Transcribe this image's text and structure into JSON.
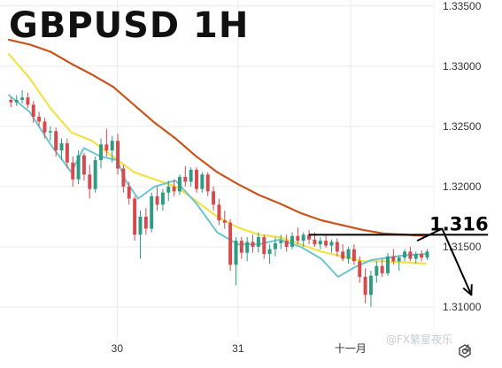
{
  "chart_data": {
    "type": "candlestick",
    "title": "GBPUSD 1H",
    "ylim": [
      1.3075,
      1.3355
    ],
    "yticks": [
      {
        "v": 1.335,
        "label": "1.33500"
      },
      {
        "v": 1.33,
        "label": "1.33000"
      },
      {
        "v": 1.325,
        "label": "1.32500"
      },
      {
        "v": 1.32,
        "label": "1.32000"
      },
      {
        "v": 1.315,
        "label": "1.31500"
      },
      {
        "v": 1.31,
        "label": "1.31000"
      }
    ],
    "xlim": [
      0,
      102
    ],
    "xticks": [
      {
        "x": 26,
        "label": "30"
      },
      {
        "x": 55,
        "label": "31"
      },
      {
        "x": 82,
        "label": "十一月"
      },
      {
        "x": 110,
        "label": "4"
      }
    ],
    "grid": true,
    "candles": [
      [
        1.3272,
        1.3274,
        1.3266,
        1.327
      ],
      [
        1.327,
        1.3276,
        1.3267,
        1.3272
      ],
      [
        1.3272,
        1.328,
        1.3269,
        1.3274
      ],
      [
        1.3274,
        1.3278,
        1.3265,
        1.3268
      ],
      [
        1.3268,
        1.3271,
        1.3253,
        1.3258
      ],
      [
        1.3258,
        1.3262,
        1.325,
        1.3254
      ],
      [
        1.3254,
        1.3257,
        1.324,
        1.3245
      ],
      [
        1.3245,
        1.325,
        1.3238,
        1.3246
      ],
      [
        1.3246,
        1.3249,
        1.3225,
        1.323
      ],
      [
        1.323,
        1.324,
        1.3222,
        1.3236
      ],
      [
        1.3236,
        1.324,
        1.3215,
        1.322
      ],
      [
        1.322,
        1.3225,
        1.32,
        1.3206
      ],
      [
        1.3206,
        1.323,
        1.3202,
        1.3226
      ],
      [
        1.3226,
        1.3228,
        1.3205,
        1.321
      ],
      [
        1.321,
        1.3218,
        1.319,
        1.3198
      ],
      [
        1.3198,
        1.3225,
        1.3195,
        1.3222
      ],
      [
        1.3222,
        1.324,
        1.3215,
        1.3235
      ],
      [
        1.3235,
        1.3248,
        1.3225,
        1.323
      ],
      [
        1.323,
        1.3242,
        1.322,
        1.3238
      ],
      [
        1.3238,
        1.3244,
        1.321,
        1.3215
      ],
      [
        1.3215,
        1.3218,
        1.3195,
        1.32
      ],
      [
        1.32,
        1.3204,
        1.3185,
        1.319
      ],
      [
        1.319,
        1.3192,
        1.3155,
        1.316
      ],
      [
        1.316,
        1.318,
        1.314,
        1.3175
      ],
      [
        1.3175,
        1.3182,
        1.316,
        1.3165
      ],
      [
        1.3165,
        1.3195,
        1.3162,
        1.3192
      ],
      [
        1.3192,
        1.32,
        1.318,
        1.3185
      ],
      [
        1.3185,
        1.3198,
        1.318,
        1.3195
      ],
      [
        1.3195,
        1.3205,
        1.3188,
        1.32
      ],
      [
        1.32,
        1.3206,
        1.3192,
        1.3196
      ],
      [
        1.3196,
        1.321,
        1.3193,
        1.3208
      ],
      [
        1.3208,
        1.3217,
        1.32,
        1.3204
      ],
      [
        1.3204,
        1.3216,
        1.32,
        1.3214
      ],
      [
        1.3214,
        1.3216,
        1.3195,
        1.3198
      ],
      [
        1.3198,
        1.3212,
        1.3195,
        1.321
      ],
      [
        1.321,
        1.3212,
        1.3192,
        1.3196
      ],
      [
        1.3196,
        1.32,
        1.318,
        1.3185
      ],
      [
        1.3185,
        1.319,
        1.3168,
        1.3172
      ],
      [
        1.3172,
        1.318,
        1.3165,
        1.317
      ],
      [
        1.317,
        1.3173,
        1.313,
        1.3135
      ],
      [
        1.3135,
        1.3158,
        1.3118,
        1.3155
      ],
      [
        1.3155,
        1.3158,
        1.314,
        1.3145
      ],
      [
        1.3145,
        1.3158,
        1.3138,
        1.3154
      ],
      [
        1.3154,
        1.316,
        1.3145,
        1.315
      ],
      [
        1.315,
        1.3162,
        1.3145,
        1.3158
      ],
      [
        1.3158,
        1.316,
        1.314,
        1.3144
      ],
      [
        1.3144,
        1.3152,
        1.3136,
        1.3148
      ],
      [
        1.3148,
        1.3158,
        1.3142,
        1.3153
      ],
      [
        1.3153,
        1.316,
        1.3148,
        1.3155
      ],
      [
        1.3155,
        1.316,
        1.3146,
        1.315
      ],
      [
        1.315,
        1.3162,
        1.3148,
        1.3159
      ],
      [
        1.3159,
        1.3166,
        1.3152,
        1.3155
      ],
      [
        1.3155,
        1.3162,
        1.315,
        1.316
      ],
      [
        1.316,
        1.3164,
        1.3152,
        1.3156
      ],
      [
        1.3156,
        1.3162,
        1.315,
        1.3152
      ],
      [
        1.3152,
        1.3158,
        1.3148,
        1.3155
      ],
      [
        1.3155,
        1.316,
        1.3149,
        1.3151
      ],
      [
        1.3151,
        1.3156,
        1.3145,
        1.3154
      ],
      [
        1.3154,
        1.3157,
        1.3142,
        1.3146
      ],
      [
        1.3146,
        1.3152,
        1.3138,
        1.314
      ],
      [
        1.314,
        1.315,
        1.3136,
        1.3148
      ],
      [
        1.3148,
        1.3152,
        1.3135,
        1.3138
      ],
      [
        1.3138,
        1.3142,
        1.312,
        1.3125
      ],
      [
        1.3125,
        1.3132,
        1.3103,
        1.311
      ],
      [
        1.311,
        1.313,
        1.31,
        1.3126
      ],
      [
        1.3126,
        1.3138,
        1.312,
        1.3134
      ],
      [
        1.3134,
        1.314,
        1.3125,
        1.3128
      ],
      [
        1.3128,
        1.3145,
        1.3126,
        1.3142
      ],
      [
        1.3142,
        1.3148,
        1.3135,
        1.3138
      ],
      [
        1.3138,
        1.3143,
        1.313,
        1.3141
      ],
      [
        1.3141,
        1.3148,
        1.3138,
        1.3146
      ],
      [
        1.3146,
        1.315,
        1.3138,
        1.314
      ],
      [
        1.314,
        1.3146,
        1.3136,
        1.3144
      ],
      [
        1.3144,
        1.3147,
        1.3138,
        1.3141
      ],
      [
        1.3141,
        1.3148,
        1.3139,
        1.3146
      ]
    ],
    "candles_x_start": 0.5,
    "candles_x_step": 1.35,
    "series": [
      {
        "style": "fast",
        "color": "#6cc6d0",
        "values": [
          [
            0,
            1.3276
          ],
          [
            5,
            1.3262
          ],
          [
            10,
            1.3235
          ],
          [
            15,
            1.3212
          ],
          [
            18,
            1.3232
          ],
          [
            22,
            1.3225
          ],
          [
            26,
            1.3222
          ],
          [
            28,
            1.3205
          ],
          [
            31,
            1.319
          ],
          [
            35,
            1.32
          ],
          [
            40,
            1.3205
          ],
          [
            45,
            1.3186
          ],
          [
            50,
            1.3162
          ],
          [
            55,
            1.3152
          ],
          [
            60,
            1.3152
          ],
          [
            65,
            1.3156
          ],
          [
            70,
            1.315
          ],
          [
            75,
            1.314
          ],
          [
            79,
            1.3125
          ],
          [
            83,
            1.3133
          ],
          [
            87,
            1.3139
          ],
          [
            91,
            1.3141
          ],
          [
            95,
            1.3143
          ],
          [
            100,
            1.3144
          ]
        ]
      },
      {
        "style": "medium",
        "color": "#f2e24a",
        "values": [
          [
            0,
            1.331
          ],
          [
            5,
            1.329
          ],
          [
            10,
            1.3265
          ],
          [
            15,
            1.3245
          ],
          [
            20,
            1.3238
          ],
          [
            25,
            1.3225
          ],
          [
            30,
            1.3212
          ],
          [
            35,
            1.3206
          ],
          [
            40,
            1.32
          ],
          [
            45,
            1.3188
          ],
          [
            50,
            1.3175
          ],
          [
            55,
            1.3166
          ],
          [
            60,
            1.316
          ],
          [
            65,
            1.3158
          ],
          [
            70,
            1.3152
          ],
          [
            75,
            1.3146
          ],
          [
            80,
            1.3142
          ],
          [
            85,
            1.3138
          ],
          [
            90,
            1.3138
          ],
          [
            95,
            1.3137
          ],
          [
            100,
            1.3136
          ]
        ]
      },
      {
        "style": "slow",
        "color": "#c9551c",
        "values": [
          [
            0,
            1.3322
          ],
          [
            5,
            1.3318
          ],
          [
            10,
            1.3312
          ],
          [
            15,
            1.3302
          ],
          [
            20,
            1.3293
          ],
          [
            25,
            1.3283
          ],
          [
            30,
            1.3268
          ],
          [
            35,
            1.3253
          ],
          [
            40,
            1.324
          ],
          [
            45,
            1.3225
          ],
          [
            50,
            1.3212
          ],
          [
            55,
            1.3202
          ],
          [
            60,
            1.3193
          ],
          [
            65,
            1.3186
          ],
          [
            70,
            1.3178
          ],
          [
            75,
            1.3172
          ],
          [
            80,
            1.3168
          ],
          [
            85,
            1.3164
          ],
          [
            90,
            1.3161
          ],
          [
            95,
            1.316
          ],
          [
            100,
            1.3159
          ]
        ]
      }
    ],
    "annotations": {
      "level": {
        "value": 1.316,
        "label": "1.316",
        "x_from": 72,
        "x_to": 115
      },
      "arrow": {
        "points": [
          [
            98,
            1.3155
          ],
          [
            104,
            1.3165
          ],
          [
            111,
            1.311
          ]
        ]
      }
    },
    "colors": {
      "up": "#2f9b82",
      "down": "#d64a4e",
      "grid": "#eaeaea"
    }
  },
  "watermark": "@FX繁星夜乐"
}
